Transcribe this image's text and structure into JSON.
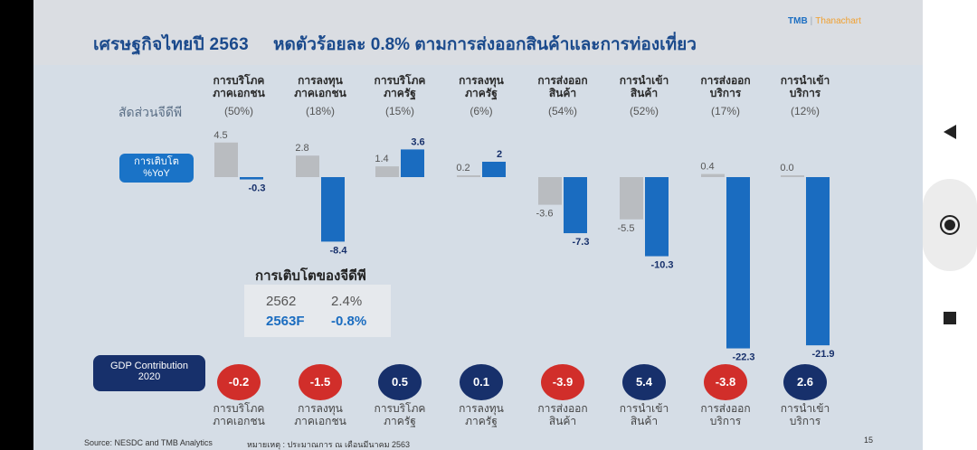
{
  "slide": {
    "title_left": "เศรษฐกิจไทยปี 2563",
    "title_right": "หดตัวร้อยละ 0.8% ตามการส่งออกสินค้าและการท่องเที่ยว",
    "logo_brand": "TMB",
    "logo_partner": "Thanachart",
    "ratio_label": "สัดส่วนจีดีพี",
    "yoy_label_line1": "การเติบโต",
    "yoy_label_line2": "%YoY",
    "contrib_label_line1": "GDP Contribution",
    "contrib_label_line2": "2020",
    "source": "Source: NESDC and TMB Analytics",
    "note": "หมายเหตุ : ประมาณการ ณ เดือนมีนาคม 2563",
    "page_number": "15"
  },
  "gdp_growth": {
    "title": "การเติบโตของจีดีพี",
    "rows": [
      {
        "year": "2562",
        "value": "2.4%"
      },
      {
        "year": "2563F",
        "value": "-0.8%"
      }
    ]
  },
  "colors": {
    "bar_2562": "#b9bcc0",
    "bar_2563": "#1a6cc0",
    "bubble_negative": "#d12e2a",
    "bubble_positive": "#17306b"
  },
  "chart_data": {
    "type": "bar",
    "categories": [
      {
        "line1": "การบริโภค",
        "line2": "ภาคเอกชน",
        "share": "(50%)"
      },
      {
        "line1": "การลงทุน",
        "line2": "ภาคเอกชน",
        "share": "(18%)"
      },
      {
        "line1": "การบริโภค",
        "line2": "ภาครัฐ",
        "share": "(15%)"
      },
      {
        "line1": "การลงทุน",
        "line2": "ภาครัฐ",
        "share": "(6%)"
      },
      {
        "line1": "การส่งออก",
        "line2": "สินค้า",
        "share": "(54%)"
      },
      {
        "line1": "การนำเข้า",
        "line2": "สินค้า",
        "share": "(52%)"
      },
      {
        "line1": "การส่งออก",
        "line2": "บริการ",
        "share": "(17%)"
      },
      {
        "line1": "การนำเข้า",
        "line2": "บริการ",
        "share": "(12%)"
      }
    ],
    "series": [
      {
        "values": [
          4.5,
          2.8,
          1.4,
          0.2,
          -3.6,
          -5.5,
          0.4,
          0.0
        ],
        "labels": [
          "4.5",
          "2.8",
          "1.4",
          "0.2",
          "-3.6",
          "-5.5",
          "0.4",
          "0.0"
        ]
      },
      {
        "values": [
          -0.3,
          -8.4,
          3.6,
          2,
          -7.3,
          -10.3,
          -22.3,
          -21.9
        ],
        "labels": [
          "-0.3",
          "-8.4",
          "3.6",
          "2",
          "-7.3",
          "-10.3",
          "-22.3",
          "-21.9"
        ]
      }
    ],
    "gdp_contribution": [
      "-0.2",
      "-1.5",
      "0.5",
      "0.1",
      "-3.9",
      "5.4",
      "-3.8",
      "2.6"
    ]
  },
  "nav": {
    "back": "back-triangle",
    "home": "home-circle",
    "recent": "recent-square"
  }
}
